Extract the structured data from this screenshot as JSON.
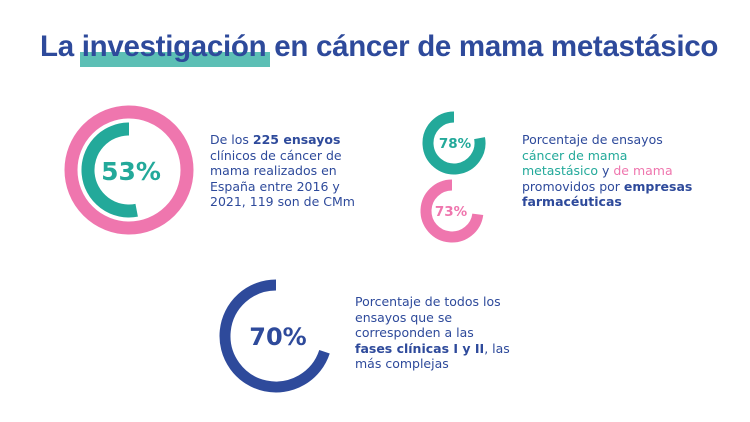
{
  "title": {
    "before": "La ",
    "highlight": "investigación",
    "after": " en cáncer de mama metastásico"
  },
  "colors": {
    "navy": "#2E4A9B",
    "teal": "#23A99A",
    "pink": "#EF76AE",
    "highlight": "#5CBFB5"
  },
  "stat1": {
    "value": 53,
    "label": "53%",
    "text": {
      "p1": "De los ",
      "b1": "225 ensayos",
      "p2": " clínicos de cáncer de mama realizados en España entre 2016 y 2021, 119 son de CMm"
    }
  },
  "stat2": {
    "value": 78,
    "label": "78%"
  },
  "stat3": {
    "value": 73,
    "label": "73%"
  },
  "stat23_text": {
    "p1": "Porcentaje de ensayos ",
    "teal": "cáncer de mama metastásico",
    "p2": " y ",
    "pink": "de mama",
    "p3": " promovidos por ",
    "b1": "empresas farmacéuticas"
  },
  "stat4": {
    "value": 70,
    "label": "70%",
    "text": {
      "p1": "Porcentaje de todos los ensayos que se corresponden a las ",
      "b1": "fases clínicas I y II",
      "p2": ", las más complejas"
    }
  }
}
